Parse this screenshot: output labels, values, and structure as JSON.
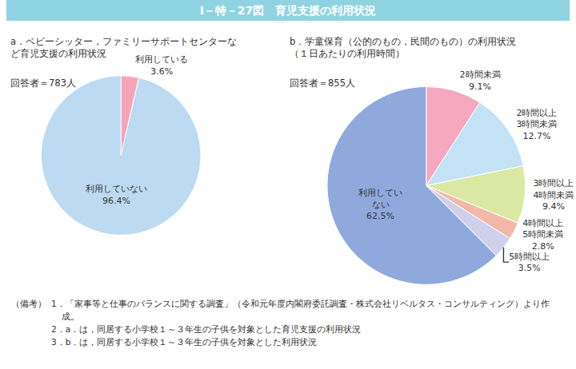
{
  "title": "Ⅰ－特－27図　育児支援の利用状況",
  "chart_data": [
    {
      "type": "pie",
      "title": "a．ベビーシッター，ファミリーサポートセンターな\nど育児支援の利用状況",
      "subtitle": "回答者＝783人",
      "categories": [
        "利用している",
        "利用していない"
      ],
      "values": [
        3.6,
        96.4
      ],
      "value_labels": [
        "3.6%",
        "96.4%"
      ],
      "colors": [
        "#f4a6b8",
        "#bcdaf2"
      ],
      "data_labels": true
    },
    {
      "type": "pie",
      "title": "b．学童保育（公的のもの，民間のもの）の利用状況\n（１日あたりの利用時間）",
      "subtitle": "回答者＝855人",
      "categories": [
        "2時間未満",
        "2時間以上\n3時間未満",
        "3時間以上\n4時間未満",
        "4時間以上\n5時間未満",
        "5時間以上",
        "利用してい\nない"
      ],
      "values": [
        9.1,
        12.7,
        9.4,
        2.8,
        3.5,
        62.5
      ],
      "value_labels": [
        "9.1%",
        "12.7%",
        "9.4%",
        "2.8%",
        "3.5%",
        "62.5%"
      ],
      "colors": [
        "#f5a8c0",
        "#c4e2f6",
        "#dce9a4",
        "#f3b9a8",
        "#cfd0ec",
        "#8fa9dd"
      ],
      "data_labels": true
    }
  ],
  "notes": {
    "label": "（備考）",
    "items": [
      "1．「家事等と仕事のバランスに関する調査」（令和元年度内閣府委託調査・株式会社リベルタス・コンサルティング）より作成。",
      "2．a．は，同居する小学校１～３年生の子供を対象とした育児支援の利用状況",
      "3．b．は，同居する小学校１～３年生の子供を対象とした利用状況"
    ]
  }
}
